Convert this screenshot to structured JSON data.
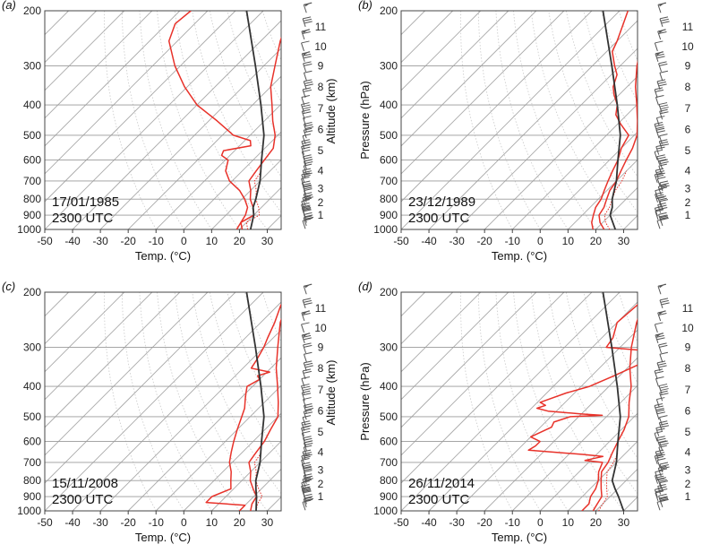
{
  "chart_data": [
    {
      "type": "line",
      "panel_label": "(a)",
      "stamp_date": "17/01/1985",
      "stamp_time": "2300 UTC",
      "xlabel": "Temp. (°C)",
      "ylabel": "",
      "altitude_label": "Altitude (km)",
      "x_ticks": [
        -50,
        -40,
        -30,
        -20,
        -10,
        0,
        10,
        20,
        30
      ],
      "y_ticks": [
        200,
        300,
        400,
        500,
        600,
        700,
        800,
        900,
        1000
      ],
      "altitude_ticks": [
        1,
        2,
        3,
        4,
        5,
        6,
        7,
        8,
        9,
        10,
        11
      ],
      "xlim": [
        -50,
        35
      ],
      "ylim": [
        1000,
        200
      ],
      "y_scale": "log",
      "grid": true,
      "series": [
        {
          "role": "temperature",
          "color": "#e8322a",
          "points": [
            [
              1000,
              21
            ],
            [
              950,
              18
            ],
            [
              925,
              19
            ],
            [
              900,
              20
            ],
            [
              850,
              17
            ],
            [
              800,
              13
            ],
            [
              750,
              10
            ],
            [
              700,
              6
            ],
            [
              650,
              5
            ],
            [
              600,
              4
            ],
            [
              550,
              3
            ],
            [
              500,
              -1
            ],
            [
              450,
              -7
            ],
            [
              400,
              -13
            ],
            [
              350,
              -20
            ],
            [
              300,
              -26
            ],
            [
              250,
              -33
            ],
            [
              220,
              -37
            ],
            [
              200,
              -35
            ]
          ]
        },
        {
          "role": "dewpoint",
          "color": "#e8322a",
          "points": [
            [
              1000,
              19
            ],
            [
              950,
              18
            ],
            [
              900,
              17
            ],
            [
              850,
              15
            ],
            [
              800,
              11
            ],
            [
              750,
              6
            ],
            [
              700,
              -1
            ],
            [
              650,
              -6
            ],
            [
              600,
              -9
            ],
            [
              580,
              -13
            ],
            [
              560,
              -14
            ],
            [
              540,
              -6
            ],
            [
              520,
              -8
            ],
            [
              500,
              -16
            ],
            [
              450,
              -27
            ],
            [
              400,
              -40
            ],
            [
              350,
              -51
            ],
            [
              300,
              -62
            ],
            [
              250,
              -73
            ],
            [
              220,
              -77
            ],
            [
              200,
              -76
            ]
          ]
        },
        {
          "role": "parcel",
          "color": "#333333",
          "points": [
            [
              1000,
              24
            ],
            [
              900,
              20
            ],
            [
              850,
              17
            ],
            [
              800,
              15
            ],
            [
              700,
              10
            ],
            [
              600,
              3
            ],
            [
              500,
              -5
            ],
            [
              400,
              -17
            ],
            [
              300,
              -33
            ],
            [
              200,
              -56
            ]
          ]
        }
      ]
    },
    {
      "type": "line",
      "panel_label": "(b)",
      "stamp_date": "23/12/1989",
      "stamp_time": "2300 UTC",
      "xlabel": "Temp. (°C)",
      "ylabel": "Pressure (hPa)",
      "altitude_label": "",
      "x_ticks": [
        -50,
        -40,
        -30,
        -20,
        -10,
        0,
        10,
        20,
        30
      ],
      "y_ticks": [
        200,
        300,
        400,
        500,
        600,
        700,
        800,
        900,
        1000
      ],
      "altitude_ticks": [
        1,
        2,
        3,
        4,
        5,
        6,
        7,
        8,
        9,
        10,
        11
      ],
      "xlim": [
        -50,
        35
      ],
      "ylim": [
        1000,
        200
      ],
      "y_scale": "log",
      "grid": true,
      "series": [
        {
          "role": "temperature",
          "color": "#e8322a",
          "points": [
            [
              1000,
              23
            ],
            [
              950,
              19
            ],
            [
              900,
              16
            ],
            [
              850,
              15
            ],
            [
              800,
              13
            ],
            [
              750,
              11
            ],
            [
              700,
              10
            ],
            [
              650,
              8
            ],
            [
              600,
              6
            ],
            [
              550,
              4
            ],
            [
              500,
              1
            ],
            [
              450,
              -4
            ],
            [
              400,
              -10
            ],
            [
              350,
              -17
            ],
            [
              300,
              -24
            ],
            [
              250,
              -31
            ],
            [
              220,
              -34
            ],
            [
              200,
              -37
            ]
          ]
        },
        {
          "role": "dewpoint",
          "color": "#e8322a",
          "points": [
            [
              1000,
              19
            ],
            [
              950,
              16
            ],
            [
              900,
              14
            ],
            [
              850,
              12
            ],
            [
              800,
              11
            ],
            [
              750,
              9
            ],
            [
              700,
              7
            ],
            [
              650,
              5
            ],
            [
              600,
              3
            ],
            [
              550,
              0
            ],
            [
              500,
              -2
            ],
            [
              460,
              -9
            ],
            [
              430,
              -14
            ],
            [
              400,
              -17
            ],
            [
              370,
              -22
            ],
            [
              350,
              -25
            ],
            [
              320,
              -28
            ],
            [
              300,
              -32
            ],
            [
              270,
              -38
            ],
            [
              250,
              -40
            ],
            [
              220,
              -44
            ],
            [
              200,
              -47
            ]
          ]
        },
        {
          "role": "parcel",
          "color": "#333333",
          "points": [
            [
              1000,
              27
            ],
            [
              900,
              20
            ],
            [
              850,
              18
            ],
            [
              800,
              15
            ],
            [
              700,
              10
            ],
            [
              600,
              3
            ],
            [
              500,
              -5
            ],
            [
              400,
              -17
            ],
            [
              300,
              -33
            ],
            [
              200,
              -56
            ]
          ]
        }
      ]
    },
    {
      "type": "line",
      "panel_label": "(c)",
      "stamp_date": "15/11/2008",
      "stamp_time": "2300 UTC",
      "xlabel": "Temp. (°C)",
      "ylabel": "",
      "altitude_label": "Altitude (km)",
      "x_ticks": [
        -50,
        -40,
        -30,
        -20,
        -10,
        0,
        10,
        20,
        30
      ],
      "y_ticks": [
        200,
        300,
        400,
        500,
        600,
        700,
        800,
        900,
        1000
      ],
      "altitude_ticks": [
        1,
        2,
        3,
        4,
        5,
        6,
        7,
        8,
        9,
        10,
        11
      ],
      "xlim": [
        -50,
        35
      ],
      "ylim": [
        1000,
        200
      ],
      "y_scale": "log",
      "grid": true,
      "series": [
        {
          "role": "temperature",
          "color": "#e8322a",
          "points": [
            [
              1000,
              24
            ],
            [
              950,
              22
            ],
            [
              900,
              21
            ],
            [
              850,
              17
            ],
            [
              800,
              13
            ],
            [
              750,
              10
            ],
            [
              700,
              6
            ],
            [
              650,
              5
            ],
            [
              600,
              4
            ],
            [
              550,
              2
            ],
            [
              500,
              0
            ],
            [
              450,
              -5
            ],
            [
              400,
              -11
            ],
            [
              350,
              -18
            ],
            [
              300,
              -25
            ],
            [
              250,
              -33
            ],
            [
              220,
              -37
            ],
            [
              200,
              -37
            ]
          ]
        },
        {
          "role": "dewpoint",
          "color": "#e8322a",
          "points": [
            [
              1000,
              20
            ],
            [
              960,
              20
            ],
            [
              940,
              5
            ],
            [
              900,
              5
            ],
            [
              850,
              9
            ],
            [
              800,
              6
            ],
            [
              750,
              3
            ],
            [
              700,
              -1
            ],
            [
              650,
              -4
            ],
            [
              600,
              -7
            ],
            [
              550,
              -10
            ],
            [
              500,
              -13
            ],
            [
              470,
              -15
            ],
            [
              440,
              -18
            ],
            [
              420,
              -20
            ],
            [
              400,
              -22
            ],
            [
              380,
              -20
            ],
            [
              370,
              -22
            ],
            [
              360,
              -19
            ],
            [
              350,
              -27
            ],
            [
              330,
              -28
            ],
            [
              300,
              -30
            ],
            [
              280,
              -32
            ],
            [
              250,
              -35
            ],
            [
              220,
              -39
            ],
            [
              200,
              -40
            ]
          ]
        },
        {
          "role": "parcel",
          "color": "#333333",
          "points": [
            [
              1000,
              26
            ],
            [
              900,
              21
            ],
            [
              850,
              18
            ],
            [
              800,
              15
            ],
            [
              700,
              10
            ],
            [
              600,
              3
            ],
            [
              500,
              -5
            ],
            [
              400,
              -17
            ],
            [
              300,
              -33
            ],
            [
              200,
              -56
            ]
          ]
        }
      ]
    },
    {
      "type": "line",
      "panel_label": "(d)",
      "stamp_date": "26/11/2014",
      "stamp_time": "2300 UTC",
      "xlabel": "Temp. (°C)",
      "ylabel": "Pressure (hPa)",
      "altitude_label": "",
      "x_ticks": [
        -50,
        -40,
        -30,
        -20,
        -10,
        0,
        10,
        20,
        30
      ],
      "y_ticks": [
        200,
        300,
        400,
        500,
        600,
        700,
        800,
        900,
        1000
      ],
      "altitude_ticks": [
        1,
        2,
        3,
        4,
        5,
        6,
        7,
        8,
        9,
        10,
        11
      ],
      "xlim": [
        -50,
        35
      ],
      "ylim": [
        1000,
        200
      ],
      "y_scale": "log",
      "grid": true,
      "series": [
        {
          "role": "temperature",
          "color": "#e8322a",
          "points": [
            [
              1000,
              19
            ],
            [
              950,
              18
            ],
            [
              900,
              17
            ],
            [
              850,
              14
            ],
            [
              800,
              11
            ],
            [
              750,
              8
            ],
            [
              700,
              7
            ],
            [
              650,
              5
            ],
            [
              600,
              3
            ],
            [
              550,
              1
            ],
            [
              500,
              -2
            ],
            [
              450,
              -7
            ],
            [
              400,
              -12
            ],
            [
              350,
              -19
            ],
            [
              300,
              -26
            ],
            [
              250,
              -33
            ],
            [
              220,
              -37
            ],
            [
              200,
              -37
            ]
          ]
        },
        {
          "role": "dewpoint",
          "color": "#e8322a",
          "points": [
            [
              1000,
              15
            ],
            [
              950,
              15
            ],
            [
              900,
              13
            ],
            [
              850,
              12
            ],
            [
              800,
              10
            ],
            [
              750,
              7
            ],
            [
              700,
              5
            ],
            [
              690,
              -2
            ],
            [
              670,
              3
            ],
            [
              660,
              -5
            ],
            [
              640,
              -26
            ],
            [
              620,
              -25
            ],
            [
              600,
              -25
            ],
            [
              580,
              -30
            ],
            [
              560,
              -28
            ],
            [
              540,
              -26
            ],
            [
              520,
              -27
            ],
            [
              500,
              -23
            ],
            [
              495,
              -12
            ],
            [
              490,
              -20
            ],
            [
              480,
              -33
            ],
            [
              470,
              -38
            ],
            [
              460,
              -36
            ],
            [
              450,
              -39
            ],
            [
              420,
              -33
            ],
            [
              400,
              -27
            ],
            [
              370,
              -22
            ],
            [
              340,
              -17
            ],
            [
              320,
              -15
            ],
            [
              310,
              -15
            ],
            [
              300,
              -35
            ],
            [
              280,
              -36
            ],
            [
              250,
              -40
            ],
            [
              220,
              -39
            ],
            [
              200,
              -40
            ]
          ]
        },
        {
          "role": "parcel",
          "color": "#333333",
          "points": [
            [
              1000,
              30
            ],
            [
              900,
              23
            ],
            [
              850,
              19
            ],
            [
              800,
              15
            ],
            [
              700,
              10
            ],
            [
              600,
              3
            ],
            [
              500,
              -5
            ],
            [
              400,
              -17
            ],
            [
              300,
              -33
            ],
            [
              200,
              -56
            ]
          ]
        }
      ]
    }
  ]
}
